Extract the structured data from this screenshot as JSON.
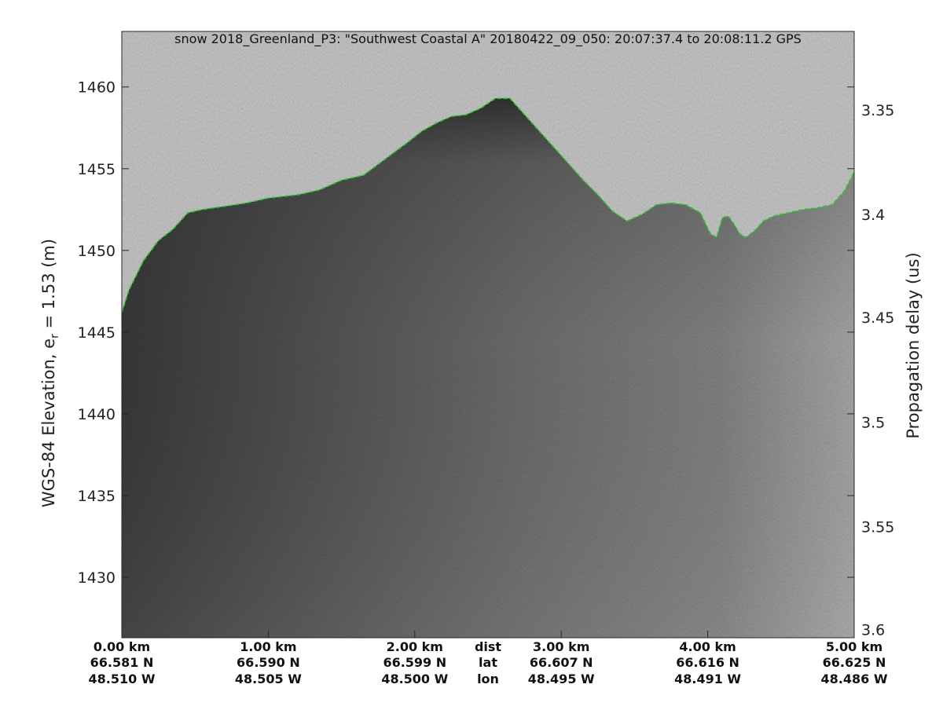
{
  "chart_data": {
    "type": "heatmap",
    "title": "snow 2018_Greenland_P3: \"Southwest Coastal A\"  20180422_09_050: 20:07:37.4 to 20:08:11.2 GPS",
    "ylabel_left": {
      "main": "WGS-84 Elevation, e",
      "sub": "r",
      "rest": " = 1.53 (m)"
    },
    "ylabel_right": "Propagation delay (us)",
    "ylim": [
      1426.3,
      1463.4
    ],
    "yticks_left": [
      1430,
      1435,
      1440,
      1445,
      1450,
      1455,
      1460
    ],
    "yticks_right": {
      "labels": [
        "3.35",
        "3.4",
        "3.45",
        "3.5",
        "3.55",
        "3.6"
      ],
      "elevation": [
        1458.6,
        1452.2,
        1445.9,
        1439.5,
        1433.1,
        1426.8
      ]
    },
    "xlim": [
      0,
      5.0
    ],
    "x_ticks": [
      {
        "pos": 0.0,
        "dist": "0.00 km",
        "lat": "66.581 N",
        "lon": "48.510 W"
      },
      {
        "pos": 1.0,
        "dist": "1.00 km",
        "lat": "66.590 N",
        "lon": "48.505 W"
      },
      {
        "pos": 2.0,
        "dist": "2.00 km",
        "lat": "66.599 N",
        "lon": "48.500 W"
      },
      {
        "pos": 3.0,
        "dist": "3.00 km",
        "lat": "66.607 N",
        "lon": "48.495 W"
      },
      {
        "pos": 4.0,
        "dist": "4.00 km",
        "lat": "66.616 N",
        "lon": "48.491 W"
      },
      {
        "pos": 5.0,
        "dist": "5.00 km",
        "lat": "66.625 N",
        "lon": "48.486 W"
      }
    ],
    "x_row_labels": {
      "pos": 2.5,
      "dist": "dist",
      "lat": "lat",
      "lon": "lon"
    },
    "surface_layer": {
      "name": "surface",
      "color": "#22cc22",
      "x": [
        0.0,
        0.05,
        0.15,
        0.25,
        0.35,
        0.45,
        0.55,
        0.7,
        0.85,
        1.0,
        1.2,
        1.35,
        1.5,
        1.65,
        1.8,
        1.95,
        2.05,
        2.15,
        2.25,
        2.35,
        2.45,
        2.55,
        2.65,
        2.75,
        2.85,
        2.95,
        3.05,
        3.15,
        3.25,
        3.35,
        3.45,
        3.55,
        3.65,
        3.75,
        3.85,
        3.95,
        4.02,
        4.06,
        4.1,
        4.14,
        4.18,
        4.22,
        4.26,
        4.32,
        4.38,
        4.45,
        4.55,
        4.65,
        4.75,
        4.85,
        4.93,
        5.0
      ],
      "y": [
        1446.2,
        1447.6,
        1449.4,
        1450.6,
        1451.3,
        1452.3,
        1452.5,
        1452.7,
        1452.9,
        1453.2,
        1453.4,
        1453.7,
        1454.3,
        1454.6,
        1455.6,
        1456.6,
        1457.3,
        1457.8,
        1458.2,
        1458.3,
        1458.7,
        1459.3,
        1459.3,
        1458.3,
        1457.3,
        1456.3,
        1455.3,
        1454.3,
        1453.4,
        1452.4,
        1451.8,
        1452.2,
        1452.8,
        1452.9,
        1452.8,
        1452.3,
        1451.0,
        1450.8,
        1452.0,
        1452.1,
        1451.6,
        1451.0,
        1450.8,
        1451.2,
        1451.8,
        1452.1,
        1452.3,
        1452.5,
        1452.6,
        1452.8,
        1453.6,
        1454.8
      ]
    },
    "colormap": "gray",
    "colors": {
      "air": "#c9c9c9",
      "ice_top": "#3a3a3a",
      "ice_mid": "#6f6f6f",
      "ice_bottom": "#aaaaaa"
    }
  }
}
